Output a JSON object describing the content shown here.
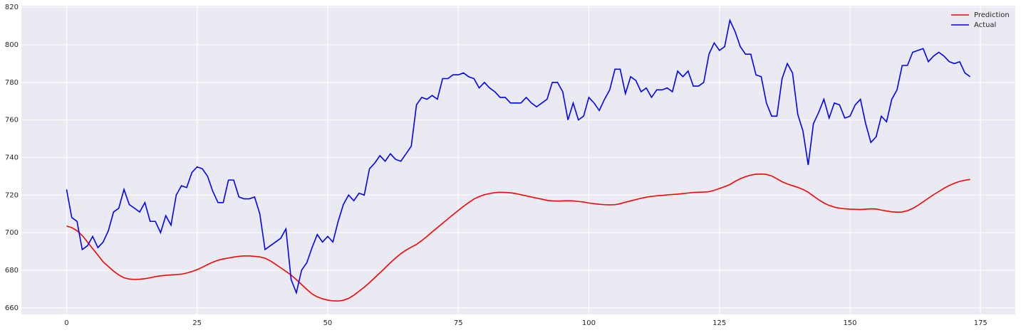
{
  "chart_data": {
    "type": "line",
    "x": [
      0,
      1,
      2,
      3,
      4,
      5,
      6,
      7,
      8,
      9,
      10,
      11,
      12,
      13,
      14,
      15,
      16,
      17,
      18,
      19,
      20,
      21,
      22,
      23,
      24,
      25,
      26,
      27,
      28,
      29,
      30,
      31,
      32,
      33,
      34,
      35,
      36,
      37,
      38,
      39,
      40,
      41,
      42,
      43,
      44,
      45,
      46,
      47,
      48,
      49,
      50,
      51,
      52,
      53,
      54,
      55,
      56,
      57,
      58,
      59,
      60,
      61,
      62,
      63,
      64,
      65,
      66,
      67,
      68,
      69,
      70,
      71,
      72,
      73,
      74,
      75,
      76,
      77,
      78,
      79,
      80,
      81,
      82,
      83,
      84,
      85,
      86,
      87,
      88,
      89,
      90,
      91,
      92,
      93,
      94,
      95,
      96,
      97,
      98,
      99,
      100,
      101,
      102,
      103,
      104,
      105,
      106,
      107,
      108,
      109,
      110,
      111,
      112,
      113,
      114,
      115,
      116,
      117,
      118,
      119,
      120,
      121,
      122,
      123,
      124,
      125,
      126,
      127,
      128,
      129,
      130,
      131,
      132,
      133,
      134,
      135,
      136,
      137,
      138,
      139,
      140,
      141,
      142,
      143,
      144,
      145,
      146,
      147,
      148,
      149,
      150,
      151,
      152,
      153,
      154,
      155,
      156,
      157,
      158,
      159,
      160,
      161,
      162,
      163,
      164,
      165,
      166,
      167,
      168,
      169,
      170,
      171,
      172,
      173
    ],
    "series": [
      {
        "name": "Prediction",
        "color": "#ff0000",
        "values": [
          703.5,
          702.7,
          701,
          698.5,
          695,
          691.5,
          688,
          684.5,
          682,
          679.5,
          677.5,
          676,
          675.3,
          675.1,
          675.2,
          675.5,
          676,
          676.6,
          677,
          677.3,
          677.5,
          677.7,
          677.9,
          678.5,
          679.3,
          680.3,
          681.6,
          683,
          684.3,
          685.3,
          686,
          686.5,
          687,
          687.4,
          687.6,
          687.6,
          687.4,
          687.1,
          686.4,
          685,
          683.2,
          681.3,
          679.4,
          677.4,
          675,
          672.4,
          669.8,
          667.4,
          665.8,
          664.8,
          664.1,
          663.7,
          663.6,
          664,
          665,
          666.7,
          668.8,
          671,
          673.4,
          676,
          678.6,
          681.3,
          684,
          686.5,
          688.8,
          690.7,
          692.3,
          693.7,
          695.8,
          698,
          700.4,
          702.7,
          705,
          707.3,
          709.6,
          711.8,
          714,
          716,
          717.9,
          719.2,
          720.2,
          720.8,
          721.3,
          721.5,
          721.4,
          721.2,
          720.8,
          720.2,
          719.6,
          719,
          718.4,
          717.8,
          717.2,
          716.9,
          716.8,
          716.9,
          717,
          716.9,
          716.6,
          716.3,
          715.8,
          715.4,
          715.1,
          714.9,
          714.8,
          714.9,
          715.4,
          716.2,
          716.9,
          717.6,
          718.3,
          718.9,
          719.3,
          719.6,
          719.8,
          720.1,
          720.3,
          720.5,
          720.8,
          721.1,
          721.4,
          721.5,
          721.6,
          721.8,
          722.5,
          723.5,
          724.5,
          725.6,
          727.3,
          728.7,
          729.8,
          730.6,
          731.1,
          731.2,
          731,
          730.2,
          728.7,
          727.1,
          725.9,
          725,
          724.1,
          723,
          721.5,
          719.5,
          717.5,
          715.8,
          714.5,
          713.6,
          713,
          712.7,
          712.5,
          712.4,
          712.3,
          712.5,
          712.7,
          712.6,
          712,
          711.5,
          711.1,
          710.9,
          711,
          711.7,
          712.9,
          714.5,
          716.4,
          718.3,
          720.2,
          721.9,
          723.6,
          725.1,
          726.3,
          727.3,
          727.9,
          728.3
        ]
      },
      {
        "name": "Actual",
        "color": "#0000ff",
        "values": [
          723,
          708,
          706,
          691,
          693,
          698,
          692,
          695,
          701,
          711,
          713,
          723,
          715,
          713,
          711,
          716,
          706,
          706,
          700,
          709,
          704,
          720,
          725,
          724,
          732,
          735,
          734,
          730,
          722,
          716,
          716,
          728,
          728,
          719,
          718,
          718,
          719,
          710,
          691,
          693,
          695,
          697,
          702,
          675,
          668,
          680,
          684,
          692,
          699,
          695,
          698,
          695,
          706,
          715,
          720,
          717,
          721,
          720,
          734,
          737,
          741,
          738,
          742,
          739,
          738,
          742,
          746,
          768,
          772,
          771,
          773,
          771,
          782,
          782,
          784,
          784,
          785,
          783,
          782,
          777,
          780,
          777,
          775,
          772,
          772,
          769,
          769,
          769,
          772,
          769,
          767,
          769,
          771,
          780,
          780,
          775,
          760,
          769,
          760,
          762,
          772,
          769,
          765,
          771,
          776,
          787,
          787,
          774,
          783,
          781,
          775,
          777,
          772,
          776,
          776,
          777,
          775,
          786,
          783,
          786,
          778,
          778,
          780,
          795,
          801,
          797,
          799,
          813,
          807,
          799,
          795,
          795,
          784,
          783,
          769,
          762,
          762,
          782,
          790,
          785,
          763,
          754,
          736,
          758,
          764,
          771,
          761,
          769,
          768,
          761,
          762,
          768,
          771,
          758,
          748,
          751,
          762,
          759,
          771,
          776,
          789,
          789,
          796,
          797,
          798,
          791,
          794,
          796,
          794,
          791,
          790,
          791,
          785,
          783
        ]
      }
    ],
    "xlim": [
      -8.65,
      181.65
    ],
    "xticks": [
      0,
      25,
      50,
      75,
      100,
      125,
      150,
      175
    ],
    "ylim": [
      656.5,
      820.8
    ],
    "yticks": [
      660,
      680,
      700,
      720,
      740,
      760,
      780,
      800,
      820
    ],
    "grid": true,
    "legend": "upper right"
  }
}
